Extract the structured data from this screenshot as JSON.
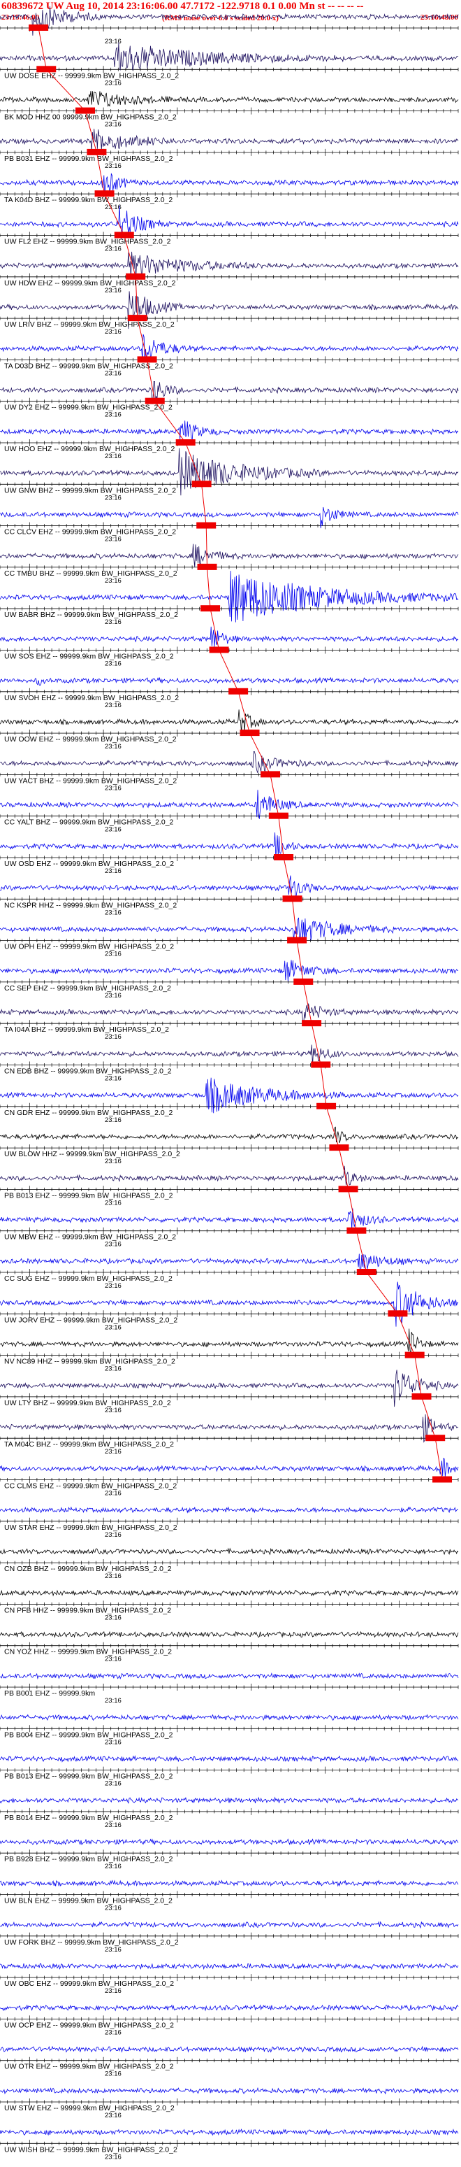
{
  "header": {
    "title": "60839672 UW Aug 10, 2014 23:16:06.00   47.7172 -122.9718  0.1 0.00 Mn st -- -- -- -- ",
    "start_time": "23:15:46.00",
    "note": "(RMS noise over 6.0 s scaled 20.0 x)",
    "end_time": "23:16:48.00"
  },
  "chart_data": {
    "type": "line",
    "time_range": [
      "23:15:46.00",
      "23:16:48.00"
    ],
    "tick_label": "23:16",
    "colors": {
      "black": "#000000",
      "blue": "#0000ee",
      "navy": "#1c0f5e",
      "red": "#ee0000"
    },
    "traces": [
      {
        "label": "",
        "color": "navy",
        "pick": 0.084,
        "burst": [
          0.07,
          0.22,
          1.5
        ]
      },
      {
        "label": "UW DOSE EHZ -- 99999.9km BW_HIGHPASS_2.0_2",
        "color": "navy",
        "pick": 0.101,
        "burst": [
          0.25,
          0.75,
          1.2
        ]
      },
      {
        "label": "BK MOD HHZ 00 99999.9km BW_HIGHPASS_2.0_2",
        "color": "black",
        "pick": 0.186,
        "burst": [
          0.19,
          0.4,
          0.8
        ]
      },
      {
        "label": "PB B031 EHZ -- 99999.9km BW_HIGHPASS_2.0_2",
        "color": "navy",
        "pick": 0.211,
        "burst": [
          0.2,
          0.4,
          1.0
        ]
      },
      {
        "label": "TA K04D BHZ -- 99999.9km BW_HIGHPASS_2.0_2",
        "color": "blue",
        "pick": 0.228,
        "burst": [
          0.22,
          0.3,
          1.4
        ]
      },
      {
        "label": "UW FL2 EHZ -- 99999.9km BW_HIGHPASS_2.0_2",
        "color": "blue",
        "pick": 0.271,
        "burst": [
          0.26,
          0.36,
          1.6
        ]
      },
      {
        "label": "UW HDW EHZ -- 99999.9km BW_HIGHPASS_2.0_2",
        "color": "navy",
        "pick": 0.296,
        "burst": [
          0.28,
          0.6,
          1.0
        ]
      },
      {
        "label": "UW LRIV BHZ -- 99999.9km BW_HIGHPASS_2.0_2",
        "color": "navy",
        "pick": 0.3,
        "burst": [
          0.28,
          0.4,
          1.6
        ]
      },
      {
        "label": "TA D03D BHZ -- 99999.9km BW_HIGHPASS_2.0_2",
        "color": "blue",
        "pick": 0.321,
        "burst": [
          0.31,
          0.42,
          1.3
        ]
      },
      {
        "label": "UW DY2 EHZ -- 99999.9km BW_HIGHPASS_2.0_2",
        "color": "navy",
        "pick": 0.338,
        "burst": [
          0.33,
          0.4,
          1.4
        ]
      },
      {
        "label": "UW HOO EHZ -- 99999.9km BW_HIGHPASS_2.0_2",
        "color": "blue",
        "pick": 0.405,
        "burst": [
          0.39,
          0.48,
          1.2
        ]
      },
      {
        "label": "UW GNW BHZ -- 99999.9km BW_HIGHPASS_2.0_2",
        "color": "navy",
        "pick": 0.44,
        "burst": [
          0.39,
          0.72,
          1.8
        ]
      },
      {
        "label": "CC CLCV EHZ -- 99999.9km BW_HIGHPASS_2.0_2",
        "color": "blue",
        "pick": 0.45,
        "burst": [
          0.7,
          0.78,
          0.9
        ]
      },
      {
        "label": "CC TMBU BHZ -- 99999.9km BW_HIGHPASS_2.0_2",
        "color": "navy",
        "pick": 0.452,
        "burst": [
          0.42,
          0.52,
          1.0
        ]
      },
      {
        "label": "UW BABR BHZ -- 99999.9km BW_HIGHPASS_2.0_2",
        "color": "blue",
        "pick": 0.459,
        "burst": [
          0.5,
          1.0,
          2.2
        ]
      },
      {
        "label": "UW SOS EHZ -- 99999.9km BW_HIGHPASS_2.0_2",
        "color": "blue",
        "pick": 0.478,
        "burst": [
          0.46,
          0.52,
          1.2
        ]
      },
      {
        "label": "UW SVOH EHZ -- 99999.9km BW_HIGHPASS_2.0_2",
        "color": "blue",
        "pick": 0.52,
        "burst": [
          0.08,
          0.1,
          0.6
        ]
      },
      {
        "label": "UW OOW EHZ -- 99999.9km BW_HIGHPASS_2.0_2",
        "color": "black",
        "pick": 0.545,
        "burst": [
          0.52,
          0.58,
          1.3
        ]
      },
      {
        "label": "UW YACT BHZ -- 99999.9km BW_HIGHPASS_2.0_2",
        "color": "navy",
        "pick": 0.59,
        "burst": [
          0.55,
          0.68,
          0.8
        ]
      },
      {
        "label": "CC YALT BHZ -- 99999.9km BW_HIGHPASS_2.0_2",
        "color": "blue",
        "pick": 0.608,
        "burst": [
          0.56,
          0.66,
          1.3
        ]
      },
      {
        "label": "UW OSD EHZ -- 99999.9km BW_HIGHPASS_2.0_2",
        "color": "blue",
        "pick": 0.619,
        "burst": [
          0.6,
          0.66,
          1.0
        ]
      },
      {
        "label": "NC KSPR HHZ -- 99999.9km BW_HIGHPASS_2.0_2",
        "color": "blue",
        "pick": 0.638,
        "burst": [
          0.63,
          0.7,
          1.2
        ]
      },
      {
        "label": "UW OPH EHZ -- 99999.9km BW_HIGHPASS_2.0_2",
        "color": "blue",
        "pick": 0.648,
        "burst": [
          0.64,
          0.86,
          1.2
        ]
      },
      {
        "label": "CC SEP EHZ -- 99999.9km BW_HIGHPASS_2.0_2",
        "color": "blue",
        "pick": 0.662,
        "burst": [
          0.62,
          0.74,
          1.0
        ]
      },
      {
        "label": "TA I04A BHZ -- 99999.9km BW_HIGHPASS_2.0_2",
        "color": "navy",
        "pick": 0.68,
        "burst": [
          0.66,
          0.76,
          0.9
        ]
      },
      {
        "label": "CN EDB BHZ -- 99999.9km BW_HIGHPASS_2.0_2",
        "color": "navy",
        "pick": 0.7,
        "burst": [
          0.68,
          0.76,
          0.9
        ]
      },
      {
        "label": "CN GDR EHZ -- 99999.9km BW_HIGHPASS_2.0_2",
        "color": "blue",
        "pick": 0.712,
        "burst": [
          0.45,
          0.75,
          1.4
        ]
      },
      {
        "label": "UW BLOW HHZ -- 99999.9km BW_HIGHPASS_2.0_2",
        "color": "black",
        "pick": 0.74,
        "burst": [
          0.73,
          0.78,
          0.7
        ]
      },
      {
        "label": "PB B013 EHZ -- 99999.9km BW_HIGHPASS_2.0_2",
        "color": "navy",
        "pick": 0.76,
        "burst": [
          0.75,
          0.8,
          1.0
        ]
      },
      {
        "label": "UW MBW EHZ -- 99999.9km BW_HIGHPASS_2.0_2",
        "color": "blue",
        "pick": 0.778,
        "burst": [
          0.76,
          0.84,
          1.2
        ]
      },
      {
        "label": "CC SUG EHZ -- 99999.9km BW_HIGHPASS_2.0_2",
        "color": "blue",
        "pick": 0.8,
        "burst": [
          0.78,
          0.9,
          0.9
        ]
      },
      {
        "label": "UW JORV EHZ -- 99999.9km BW_HIGHPASS_2.0_2",
        "color": "blue",
        "pick": 0.868,
        "burst": [
          0.86,
          1.0,
          2.0
        ]
      },
      {
        "label": "NV NC89 HHZ -- 99999.9km BW_HIGHPASS_2.0_2",
        "color": "black",
        "pick": 0.905,
        "burst": [
          0.89,
          0.94,
          1.4
        ]
      },
      {
        "label": "UW LTY BHZ -- 99999.9km BW_HIGHPASS_2.0_2",
        "color": "navy",
        "pick": 0.92,
        "burst": [
          0.86,
          0.98,
          1.6
        ]
      },
      {
        "label": "TA M04C BHZ -- 99999.9km BW_HIGHPASS_2.0_2",
        "color": "navy",
        "pick": 0.95,
        "burst": [
          0.92,
          0.99,
          1.3
        ]
      },
      {
        "label": "CC CLMS EHZ -- 99999.9km BW_HIGHPASS_2.0_2",
        "color": "blue",
        "pick": 0.965,
        "burst": [
          0.96,
          1.0,
          1.2
        ]
      },
      {
        "label": "UW STAR EHZ -- 99999.9km BW_HIGHPASS_2.0_2",
        "color": "blue",
        "pick": null,
        "burst": null
      },
      {
        "label": "CN OZB BHZ -- 99999.9km BW_HIGHPASS_2.0_2",
        "color": "black",
        "pick": null,
        "burst": null
      },
      {
        "label": "CN PFB HHZ -- 99999.9km BW_HIGHPASS_2.0_2",
        "color": "black",
        "pick": null,
        "burst": null
      },
      {
        "label": "CN YOZ HHZ -- 99999.9km BW_HIGHPASS_2.0_2",
        "color": "black",
        "pick": null,
        "burst": null
      },
      {
        "label": "PB B001 EHZ -- 99999.9km",
        "color": "blue",
        "pick": null,
        "burst": null
      },
      {
        "label": "PB B004 EHZ -- 99999.9km BW_HIGHPASS_2.0_2",
        "color": "blue",
        "pick": null,
        "burst": null
      },
      {
        "label": "PB B013 EHZ -- 99999.9km BW_HIGHPASS_2.0_2",
        "color": "blue",
        "pick": null,
        "burst": null
      },
      {
        "label": "PB B014 EHZ -- 99999.9km BW_HIGHPASS_2.0_2",
        "color": "blue",
        "pick": null,
        "burst": null
      },
      {
        "label": "PB B928 EHZ -- 99999.9km BW_HIGHPASS_2.0_2",
        "color": "blue",
        "pick": null,
        "burst": null
      },
      {
        "label": "UW BLN EHZ -- 99999.9km BW_HIGHPASS_2.0_2",
        "color": "blue",
        "pick": null,
        "burst": null
      },
      {
        "label": "UW FORK BHZ -- 99999.9km BW_HIGHPASS_2.0_2",
        "color": "blue",
        "pick": null,
        "burst": null
      },
      {
        "label": "UW OBC EHZ -- 99999.9km BW_HIGHPASS_2.0_2",
        "color": "blue",
        "pick": null,
        "burst": null
      },
      {
        "label": "UW OCP EHZ -- 99999.9km BW_HIGHPASS_2.0_2",
        "color": "blue",
        "pick": null,
        "burst": null
      },
      {
        "label": "UW OTR EHZ -- 99999.9km BW_HIGHPASS_2.0_2",
        "color": "blue",
        "pick": null,
        "burst": null
      },
      {
        "label": "UW STW EHZ -- 99999.9km BW_HIGHPASS_2.0_2",
        "color": "blue",
        "pick": null,
        "burst": null
      },
      {
        "label": "UW WISH BHZ -- 99999.9km BW_HIGHPASS_2.0_2",
        "color": "blue",
        "pick": null,
        "burst": null
      }
    ]
  }
}
